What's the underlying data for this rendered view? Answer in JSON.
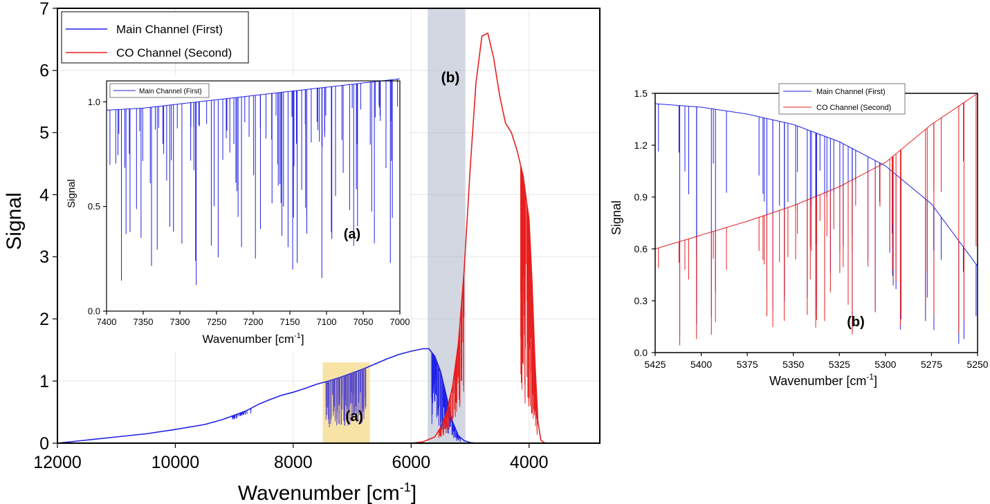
{
  "colors": {
    "main": "#1f1fe6",
    "co": "#e61f1f",
    "highlight_a": "#f5d98a",
    "highlight_b": "#aeb6cb"
  },
  "chart_data": [
    {
      "id": "main",
      "type": "line",
      "xlabel_main": "Wavenumber [cm",
      "xlabel_sup": "-1",
      "xlabel_end": "]",
      "ylabel": "Signal",
      "xlim": [
        12000,
        2800
      ],
      "ylim": [
        0,
        7
      ],
      "x_ticks": [
        "12000",
        "10000",
        "8000",
        "6000",
        "4000"
      ],
      "x_tick_values": [
        12000,
        10000,
        8000,
        6000,
        4000
      ],
      "y_ticks": [
        "0",
        "1",
        "2",
        "3",
        "4",
        "5",
        "6",
        "7"
      ],
      "y_tick_values": [
        0,
        1,
        2,
        3,
        4,
        5,
        6,
        7
      ],
      "grid": true,
      "legend_position": "top-left",
      "highlight_regions": [
        {
          "label": "(a)",
          "x": [
            7500,
            6700
          ],
          "y": [
            0,
            1.3
          ]
        },
        {
          "label": "(b)",
          "x": [
            5720,
            5080
          ],
          "y": [
            0,
            7
          ]
        }
      ],
      "series": [
        {
          "name": "Main Channel (First)",
          "x": [
            12000,
            11500,
            11000,
            10500,
            10000,
            9500,
            9200,
            9000,
            8800,
            8600,
            8400,
            8200,
            8000,
            7800,
            7600,
            7400,
            7200,
            7000,
            6800,
            6600,
            6400,
            6200,
            6000,
            5800,
            5700,
            5600,
            5500,
            5400,
            5300,
            5200,
            5100,
            5000,
            4900
          ],
          "y": [
            0.0,
            0.05,
            0.1,
            0.15,
            0.22,
            0.3,
            0.38,
            0.45,
            0.52,
            0.62,
            0.7,
            0.77,
            0.82,
            0.88,
            0.95,
            1.0,
            1.06,
            1.13,
            1.2,
            1.28,
            1.36,
            1.43,
            1.48,
            1.52,
            1.52,
            1.4,
            1.15,
            0.75,
            0.35,
            0.12,
            0.04,
            0.01,
            0.0
          ]
        },
        {
          "name": "CO Channel (Second)",
          "x": [
            6000,
            5800,
            5600,
            5500,
            5400,
            5300,
            5200,
            5100,
            5000,
            4900,
            4800,
            4700,
            4600,
            4500,
            4400,
            4300,
            4200,
            4100,
            4000,
            3950,
            3900,
            3850,
            3800,
            3750,
            3700
          ],
          "y": [
            0.0,
            0.02,
            0.1,
            0.25,
            0.5,
            0.9,
            1.6,
            2.8,
            4.4,
            5.8,
            6.55,
            6.6,
            6.2,
            5.6,
            5.15,
            5.0,
            4.7,
            4.3,
            3.6,
            2.6,
            1.3,
            0.35,
            0.05,
            0.01,
            0.0
          ]
        }
      ],
      "annotations": [
        "(a)",
        "(b)"
      ]
    },
    {
      "id": "inset_a",
      "type": "line",
      "xlabel_main": "Wavenumber [cm",
      "xlabel_sup": "-1",
      "xlabel_end": "]",
      "ylabel": "Signal",
      "xlim": [
        7400,
        7000
      ],
      "ylim": [
        0,
        1.1
      ],
      "x_ticks": [
        "7400",
        "7350",
        "7300",
        "7250",
        "7200",
        "7150",
        "7100",
        "7050",
        "7000"
      ],
      "x_tick_values": [
        7400,
        7350,
        7300,
        7250,
        7200,
        7150,
        7100,
        7050,
        7000
      ],
      "y_ticks": [
        "0.0",
        "0.5",
        "1.0"
      ],
      "y_tick_values": [
        0,
        0.5,
        1.0
      ],
      "legend_position": "top-left",
      "series": [
        {
          "name": "Main Channel (First)",
          "x": [
            7400,
            7350,
            7300,
            7250,
            7200,
            7150,
            7100,
            7050,
            7000
          ],
          "y": [
            0.96,
            0.97,
            0.99,
            1.01,
            1.03,
            1.05,
            1.07,
            1.09,
            1.11
          ]
        }
      ],
      "annotation": "(a)"
    },
    {
      "id": "panel_b",
      "type": "line",
      "xlabel_main": "Wavenumber [cm",
      "xlabel_sup": "-1",
      "xlabel_end": "]",
      "ylabel": "Signal",
      "xlim": [
        5425,
        5250
      ],
      "ylim": [
        0,
        1.5
      ],
      "x_ticks": [
        "5425",
        "5400",
        "5375",
        "5350",
        "5325",
        "5300",
        "5275",
        "5250"
      ],
      "x_tick_values": [
        5425,
        5400,
        5375,
        5350,
        5325,
        5300,
        5275,
        5250
      ],
      "y_ticks": [
        "0.0",
        "0.3",
        "0.6",
        "0.9",
        "1.2",
        "1.5"
      ],
      "y_tick_values": [
        0,
        0.3,
        0.6,
        0.9,
        1.2,
        1.5
      ],
      "legend_position": "top-center",
      "series": [
        {
          "name": "Main Channel (First)",
          "x": [
            5425,
            5400,
            5375,
            5350,
            5325,
            5300,
            5275,
            5250
          ],
          "y": [
            1.44,
            1.42,
            1.38,
            1.32,
            1.22,
            1.08,
            0.86,
            0.5
          ]
        },
        {
          "name": "CO Channel (Second)",
          "x": [
            5425,
            5400,
            5375,
            5350,
            5325,
            5300,
            5275,
            5250
          ],
          "y": [
            0.6,
            0.68,
            0.76,
            0.85,
            0.96,
            1.1,
            1.32,
            1.5
          ]
        }
      ],
      "annotation": "(b)"
    }
  ]
}
